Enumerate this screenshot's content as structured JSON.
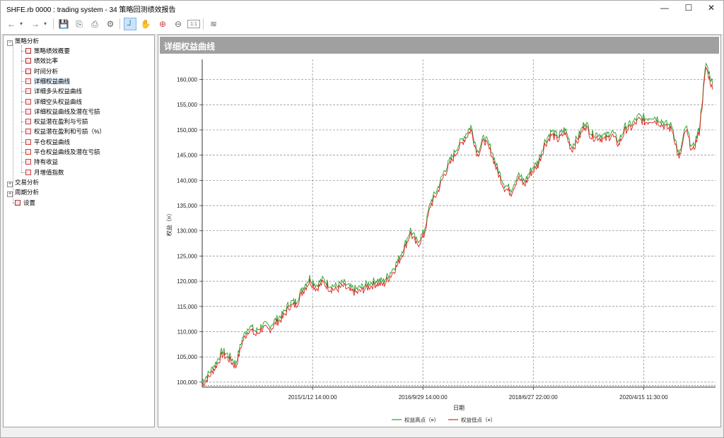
{
  "window": {
    "title": "SHFE.rb 0000 : trading system - 34 策略回测绩效报告",
    "minimize": "—",
    "maximize": "☐",
    "close": "✕"
  },
  "toolbar": {
    "back_icon": "←",
    "back_dropdown": "▾",
    "forward_icon": "→",
    "forward_dropdown": "▾",
    "save_icon": "💾",
    "export_icon": "⎘",
    "print_icon": "⎙",
    "settings_icon": "⚙",
    "crosshair_icon": "┘",
    "hand_icon": "✋",
    "zoom_in_icon": "⊕",
    "zoom_out_icon": "⊖",
    "fit_icon": "1:1",
    "chart_icon": "≋"
  },
  "tree": {
    "root_strategy": "策略分析",
    "items": [
      "策略绩效概要",
      "绩效比率",
      "时间分析",
      "详细权益曲线",
      "详细多头权益曲线",
      "详细空头权益曲线",
      "详细权益曲线及潜在亏损",
      "权益潜在盈利与亏损",
      "权益潜在盈利和亏损（%）",
      "平仓权益曲线",
      "平仓权益曲线及潜在亏损",
      "持有收益",
      "月增值指数"
    ],
    "trade_analysis": "交易分析",
    "period_analysis": "周期分析",
    "settings": "设置"
  },
  "panel": {
    "header": "详细权益曲线"
  },
  "colors": {
    "high_series": "#2a9d2a",
    "low_series": "#e02020",
    "header_bg": "#a0a0a0"
  },
  "chart_data": {
    "type": "line",
    "xlabel": "日期",
    "ylabel": "权益（¤）",
    "ylim": [
      99000,
      164000
    ],
    "y_ticks": [
      "100,000",
      "105,000",
      "110,000",
      "115,000",
      "120,000",
      "125,000",
      "130,000",
      "135,000",
      "140,000",
      "145,000",
      "150,000",
      "155,000",
      "160,000"
    ],
    "x_ticks": [
      "2015/1/12 14:00:00",
      "2016/9/29 14:00:00",
      "2018/6/27 22:00:00",
      "2020/4/15 11:30:00"
    ],
    "grid": true,
    "legend_placement": "bottom-center",
    "series": [
      {
        "name": "权益高点（¤）",
        "values": [
          100000,
          101500,
          103500,
          106000,
          105000,
          103500,
          108500,
          111000,
          109800,
          111200,
          110800,
          112200,
          113200,
          115500,
          115800,
          118500,
          120500,
          119000,
          120200,
          119000,
          118800,
          119500,
          118500,
          118200,
          118800,
          119500,
          120000,
          119800,
          121500,
          123500,
          126500,
          130000,
          127500,
          129500,
          135500,
          138000,
          141500,
          144000,
          146500,
          148500,
          150500,
          145500,
          148500,
          146000,
          142000,
          139000,
          138000,
          141000,
          139500,
          142000,
          143500,
          147500,
          149500,
          148500,
          150000,
          146500,
          148500,
          151500,
          149000,
          149000,
          148500,
          149500,
          147500,
          150500,
          151000,
          152500,
          152000,
          152500,
          152000,
          151000,
          150500,
          144500,
          150500,
          146000,
          150000,
          163000,
          159000
        ]
      },
      {
        "name": "权益低点（¤）",
        "values": [
          99500,
          101000,
          103000,
          105500,
          104500,
          103000,
          108000,
          110500,
          109300,
          110700,
          110300,
          111700,
          112700,
          115000,
          115300,
          118000,
          120000,
          118500,
          119700,
          118500,
          118300,
          119000,
          118000,
          117700,
          118300,
          119000,
          119500,
          119300,
          121000,
          123000,
          126000,
          129500,
          127000,
          129000,
          135000,
          137500,
          141000,
          143500,
          146000,
          148000,
          150000,
          145000,
          148000,
          145500,
          141500,
          138500,
          137500,
          140500,
          139000,
          141500,
          143000,
          147000,
          149000,
          148000,
          149500,
          146000,
          148000,
          151000,
          148500,
          148500,
          148000,
          149000,
          147000,
          150000,
          150500,
          152000,
          151500,
          152000,
          151500,
          150500,
          150000,
          144000,
          150000,
          145500,
          149500,
          162500,
          158000
        ]
      }
    ]
  }
}
